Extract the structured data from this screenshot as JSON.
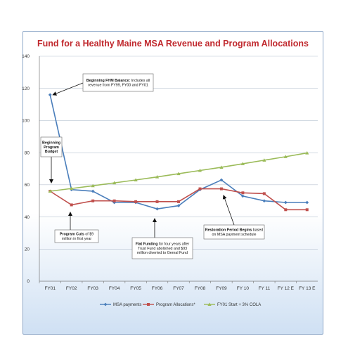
{
  "chart_data": {
    "type": "line",
    "title": "Fund for a Healthy Maine MSA Revenue and Program Allocations",
    "categories": [
      "FY01",
      "FY02",
      "FY03",
      "FY04",
      "FY05",
      "FY06",
      "FY07",
      "FY08",
      "FY09",
      "FY 10",
      "FY 11",
      "FY 12 E",
      "FY 13 E"
    ],
    "ylim": [
      0,
      140
    ],
    "yticks": [
      0,
      20,
      40,
      60,
      80,
      100,
      120,
      140
    ],
    "grid": true,
    "legend_position": "bottom",
    "series": [
      {
        "name": "MSA payments",
        "color": "#4a7ebb",
        "marker": "diamond",
        "values": [
          116,
          57,
          56,
          49,
          49,
          45,
          47,
          57,
          63,
          53,
          50,
          49,
          49
        ]
      },
      {
        "name": "Program Allocations*",
        "color": "#c0504d",
        "marker": "square",
        "values": [
          56,
          47.5,
          50,
          50,
          49.5,
          49.5,
          49.5,
          57.5,
          57.5,
          55,
          54.5,
          44.5,
          44.5
        ]
      },
      {
        "name": "FY01 Start + 3% COLA",
        "color": "#9bbb59",
        "marker": "triangle",
        "values": [
          56,
          57.7,
          59.4,
          61.2,
          63.0,
          64.9,
          66.9,
          68.9,
          70.9,
          73.1,
          75.3,
          77.5,
          79.8
        ]
      }
    ],
    "annotations": [
      {
        "bold": "Beginning FHM Balance:",
        "text": " Includes all revenue from FY99, FY00 and FY01"
      },
      {
        "bold": "Beginning Program Budget",
        "text": ""
      },
      {
        "bold": "Program Cuts",
        "text": " of $9 million in first year"
      },
      {
        "bold": "Flat Funding",
        "text": " for four years after Trust Fund abolished and $93 million diverted to Genral Fund"
      },
      {
        "bold": "Restoration Period Begins",
        "text": " based on MSA payment schedule"
      }
    ]
  }
}
